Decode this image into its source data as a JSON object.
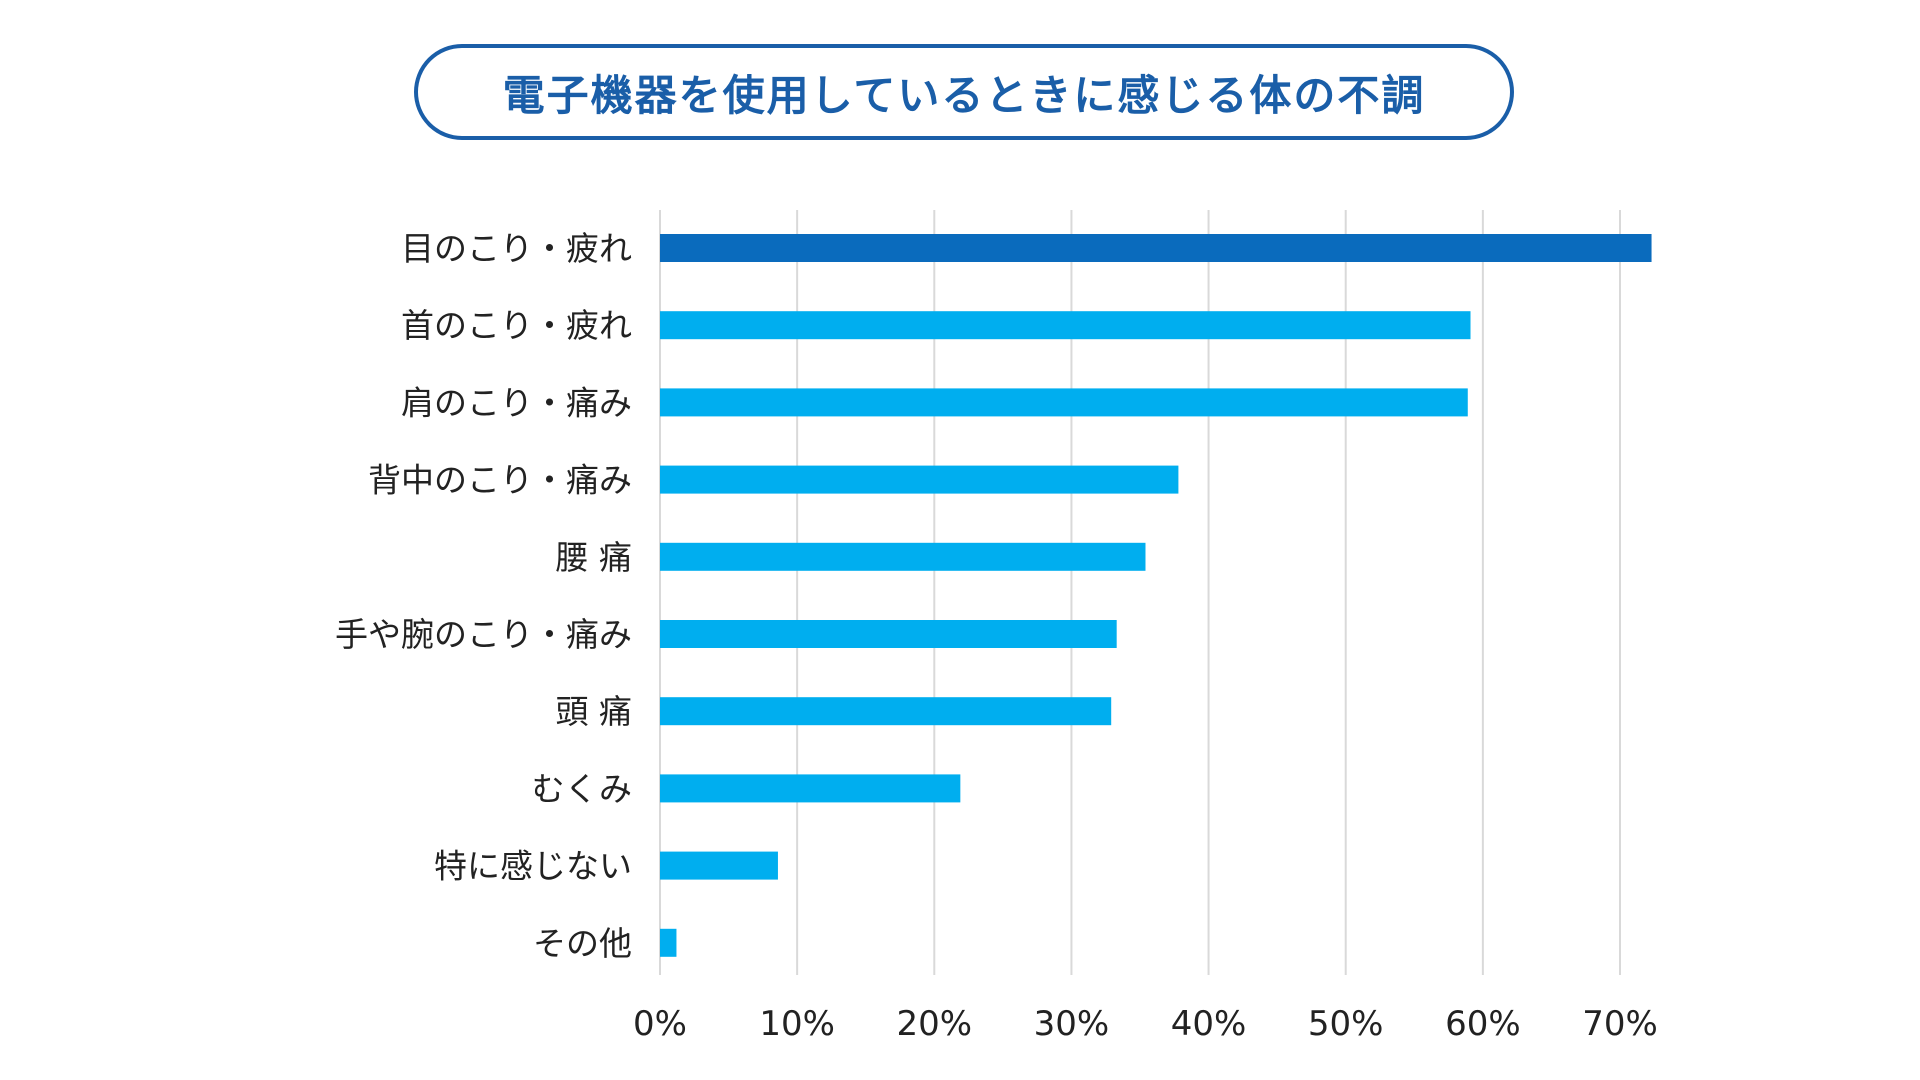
{
  "chart_data": {
    "type": "bar",
    "orientation": "horizontal",
    "title": "電子機器を使用しているときに感じる体の不調",
    "xlabel": "",
    "ylabel": "",
    "categories": [
      "目のこり・疲れ",
      "首のこり・疲れ",
      "肩のこり・痛み",
      "背中のこり・痛み",
      "腰 痛",
      "手や腕のこり・痛み",
      "頭 痛",
      "むくみ",
      "特に感じない",
      "その他"
    ],
    "values": [
      72.3,
      59.1,
      58.9,
      37.8,
      35.4,
      33.3,
      32.9,
      21.9,
      8.6,
      1.2
    ],
    "xlim": [
      0,
      70
    ],
    "ticks": [
      0,
      10,
      20,
      30,
      40,
      50,
      60,
      70
    ],
    "tick_labels": [
      "0%",
      "10%",
      "20%",
      "30%",
      "40%",
      "50%",
      "60%",
      "70%"
    ],
    "grid": true,
    "highlight_index": 0,
    "colors": {
      "highlight": "#0a6bbd",
      "bar": "#00aeef",
      "grid": "#d9d9d9",
      "title": "#1a5ea8"
    }
  }
}
